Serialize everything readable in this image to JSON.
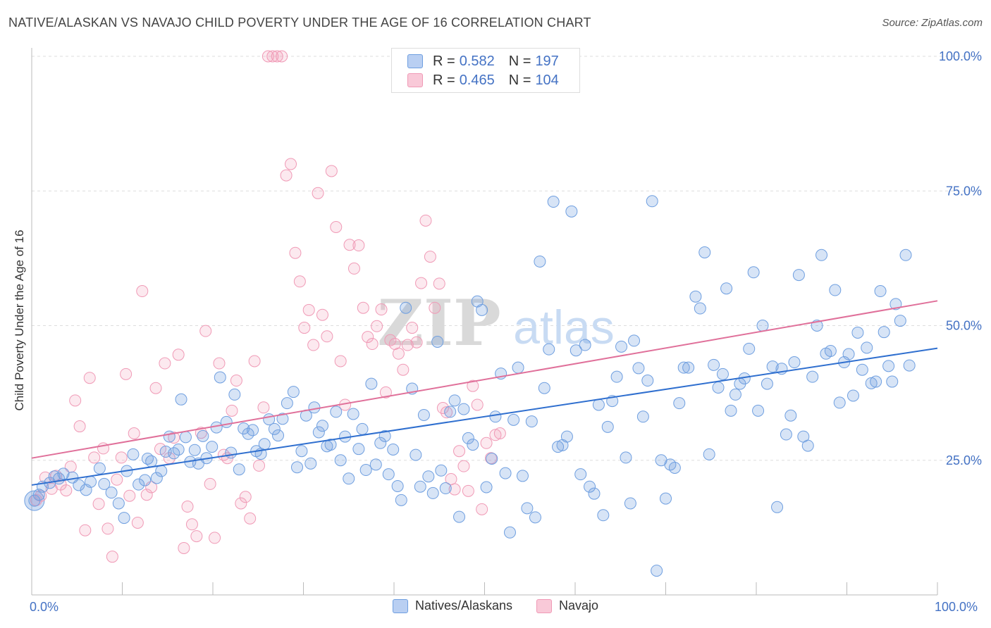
{
  "title": "NATIVE/ALASKAN VS NAVAJO CHILD POVERTY UNDER THE AGE OF 16 CORRELATION CHART",
  "source": "Source: ZipAtlas.com",
  "watermark": {
    "zip": "ZIP",
    "atlas": "atlas"
  },
  "legend": {
    "r_label": "R =",
    "n_label": "N =",
    "series": [
      {
        "r": "0.582",
        "n": "197"
      },
      {
        "r": "0.465",
        "n": "104"
      }
    ]
  },
  "bottom_legend": [
    "Natives/Alaskans",
    "Navajo"
  ],
  "chart_data": {
    "type": "scatter",
    "title": "NATIVE/ALASKAN VS NAVAJO CHILD POVERTY UNDER THE AGE OF 16 CORRELATION CHART",
    "xlabel": "",
    "ylabel": "Child Poverty Under the Age of 16",
    "xlim": [
      0,
      100
    ],
    "ylim": [
      0,
      100
    ],
    "x_tick_labels": [
      "0.0%",
      "100.0%"
    ],
    "y_tick_labels": [
      "25.0%",
      "50.0%",
      "75.0%",
      "100.0%"
    ],
    "y_ticks": [
      25,
      50,
      75,
      100
    ],
    "grid": true,
    "legend_placement": "top-center",
    "colors": {
      "natives": "#6f9fe0",
      "navajo": "#f09ab6",
      "natives_line": "#2f6fcf",
      "navajo_line": "#e0709a",
      "tick_text": "#4472c4"
    },
    "series": [
      {
        "name": "Natives/Alaskans",
        "trend": {
          "x": [
            0,
            100
          ],
          "y": [
            20.4,
            45.8
          ]
        },
        "points": [
          [
            0.3,
            17.5
          ],
          [
            0.8,
            18.6
          ],
          [
            1.2,
            20.1
          ],
          [
            2.0,
            20.8
          ],
          [
            2.5,
            22.0
          ],
          [
            3.0,
            21.6
          ],
          [
            3.5,
            22.5
          ],
          [
            4.5,
            21.8
          ],
          [
            5.2,
            20.4
          ],
          [
            6.0,
            19.5
          ],
          [
            6.5,
            21.0
          ],
          [
            7.5,
            23.5
          ],
          [
            8.0,
            20.6
          ],
          [
            8.8,
            19.0
          ],
          [
            9.6,
            17.0
          ],
          [
            10.2,
            14.3
          ],
          [
            10.5,
            23.0
          ],
          [
            11.2,
            26.1
          ],
          [
            11.8,
            20.5
          ],
          [
            12.5,
            21.3
          ],
          [
            12.8,
            25.3
          ],
          [
            13.2,
            24.8
          ],
          [
            13.8,
            21.7
          ],
          [
            14.3,
            23.0
          ],
          [
            14.8,
            26.6
          ],
          [
            15.2,
            29.4
          ],
          [
            15.7,
            26.3
          ],
          [
            16.2,
            27.0
          ],
          [
            16.5,
            36.3
          ],
          [
            17.0,
            29.3
          ],
          [
            17.5,
            24.7
          ],
          [
            18.0,
            26.9
          ],
          [
            18.4,
            24.4
          ],
          [
            18.9,
            29.5
          ],
          [
            19.3,
            25.4
          ],
          [
            19.9,
            27.5
          ],
          [
            20.4,
            31.1
          ],
          [
            20.8,
            40.4
          ],
          [
            21.5,
            32.1
          ],
          [
            22.0,
            26.4
          ],
          [
            22.4,
            37.2
          ],
          [
            22.9,
            23.3
          ],
          [
            23.4,
            30.9
          ],
          [
            23.9,
            29.9
          ],
          [
            24.4,
            30.6
          ],
          [
            24.8,
            26.7
          ],
          [
            25.3,
            26.2
          ],
          [
            25.7,
            28.0
          ],
          [
            26.2,
            32.6
          ],
          [
            26.8,
            30.8
          ],
          [
            27.2,
            29.6
          ],
          [
            27.7,
            32.7
          ],
          [
            28.2,
            35.6
          ],
          [
            28.9,
            37.7
          ],
          [
            29.3,
            23.7
          ],
          [
            29.8,
            26.7
          ],
          [
            30.3,
            33.3
          ],
          [
            30.8,
            24.4
          ],
          [
            31.2,
            34.8
          ],
          [
            31.7,
            30.2
          ],
          [
            32.1,
            31.4
          ],
          [
            32.6,
            27.6
          ],
          [
            33.0,
            27.9
          ],
          [
            33.6,
            34.0
          ],
          [
            34.1,
            25.0
          ],
          [
            34.6,
            29.4
          ],
          [
            35.0,
            21.6
          ],
          [
            35.5,
            33.6
          ],
          [
            36.1,
            27.1
          ],
          [
            36.5,
            30.8
          ],
          [
            36.9,
            23.2
          ],
          [
            37.5,
            39.2
          ],
          [
            38.0,
            24.2
          ],
          [
            38.5,
            28.2
          ],
          [
            39.0,
            29.5
          ],
          [
            39.4,
            22.4
          ],
          [
            39.9,
            27.0
          ],
          [
            40.4,
            20.2
          ],
          [
            40.8,
            17.6
          ],
          [
            41.3,
            53.3
          ],
          [
            42.0,
            38.3
          ],
          [
            42.4,
            26.0
          ],
          [
            42.9,
            20.1
          ],
          [
            43.3,
            33.4
          ],
          [
            43.8,
            22.0
          ],
          [
            44.3,
            18.9
          ],
          [
            44.8,
            47.0
          ],
          [
            45.2,
            23.1
          ],
          [
            45.7,
            19.8
          ],
          [
            46.2,
            34.0
          ],
          [
            46.7,
            36.1
          ],
          [
            47.2,
            14.5
          ],
          [
            47.7,
            34.5
          ],
          [
            48.2,
            29.1
          ],
          [
            48.7,
            27.9
          ],
          [
            49.2,
            54.5
          ],
          [
            49.7,
            52.9
          ],
          [
            50.2,
            20.0
          ],
          [
            50.8,
            25.3
          ],
          [
            51.2,
            33.1
          ],
          [
            51.8,
            41.1
          ],
          [
            52.3,
            22.6
          ],
          [
            52.8,
            11.6
          ],
          [
            53.2,
            32.5
          ],
          [
            53.7,
            42.2
          ],
          [
            54.2,
            22.1
          ],
          [
            54.7,
            16.1
          ],
          [
            55.2,
            32.2
          ],
          [
            55.6,
            14.4
          ],
          [
            56.1,
            61.9
          ],
          [
            56.6,
            38.4
          ],
          [
            57.1,
            45.6
          ],
          [
            57.6,
            73.0
          ],
          [
            58.1,
            27.5
          ],
          [
            58.6,
            27.8
          ],
          [
            59.1,
            29.4
          ],
          [
            59.6,
            71.2
          ],
          [
            60.1,
            45.4
          ],
          [
            60.6,
            22.4
          ],
          [
            61.1,
            46.4
          ],
          [
            61.6,
            20.1
          ],
          [
            62.1,
            18.8
          ],
          [
            62.6,
            35.3
          ],
          [
            63.1,
            14.8
          ],
          [
            63.6,
            31.2
          ],
          [
            64.1,
            36.0
          ],
          [
            64.6,
            40.5
          ],
          [
            65.1,
            46.1
          ],
          [
            65.6,
            25.5
          ],
          [
            66.1,
            17.0
          ],
          [
            66.5,
            47.2
          ],
          [
            67.0,
            42.1
          ],
          [
            67.5,
            33.1
          ],
          [
            68.0,
            39.8
          ],
          [
            68.5,
            73.1
          ],
          [
            69.0,
            4.5
          ],
          [
            69.5,
            25.0
          ],
          [
            70.0,
            17.9
          ],
          [
            70.5,
            24.2
          ],
          [
            71.0,
            23.6
          ],
          [
            71.5,
            35.6
          ],
          [
            72.0,
            42.2
          ],
          [
            72.5,
            42.2
          ],
          [
            73.3,
            55.4
          ],
          [
            73.8,
            53.2
          ],
          [
            74.3,
            63.6
          ],
          [
            74.8,
            26.1
          ],
          [
            75.3,
            42.7
          ],
          [
            75.8,
            38.5
          ],
          [
            76.3,
            41.0
          ],
          [
            76.7,
            56.9
          ],
          [
            77.2,
            34.2
          ],
          [
            77.7,
            37.2
          ],
          [
            78.2,
            39.2
          ],
          [
            78.7,
            40.2
          ],
          [
            79.2,
            45.7
          ],
          [
            79.7,
            59.9
          ],
          [
            80.2,
            34.2
          ],
          [
            80.7,
            50.0
          ],
          [
            81.2,
            39.2
          ],
          [
            81.8,
            42.4
          ],
          [
            82.3,
            16.3
          ],
          [
            82.8,
            42.0
          ],
          [
            83.3,
            29.8
          ],
          [
            83.8,
            33.3
          ],
          [
            84.2,
            43.2
          ],
          [
            84.7,
            59.4
          ],
          [
            85.2,
            29.4
          ],
          [
            85.7,
            27.7
          ],
          [
            86.2,
            40.5
          ],
          [
            86.7,
            50.0
          ],
          [
            87.2,
            63.1
          ],
          [
            87.7,
            44.8
          ],
          [
            88.2,
            45.3
          ],
          [
            88.7,
            56.6
          ],
          [
            89.2,
            35.7
          ],
          [
            89.7,
            43.2
          ],
          [
            90.2,
            44.7
          ],
          [
            90.7,
            37.0
          ],
          [
            91.2,
            48.7
          ],
          [
            91.7,
            41.8
          ],
          [
            92.2,
            45.9
          ],
          [
            92.7,
            39.3
          ],
          [
            93.2,
            39.6
          ],
          [
            93.7,
            56.4
          ],
          [
            94.1,
            48.8
          ],
          [
            94.6,
            42.5
          ],
          [
            95.0,
            39.6
          ],
          [
            95.4,
            54.0
          ],
          [
            95.9,
            50.9
          ],
          [
            96.5,
            63.1
          ],
          [
            96.9,
            42.6
          ]
        ]
      },
      {
        "name": "Navajo",
        "trend": {
          "x": [
            0,
            100
          ],
          "y": [
            25.4,
            54.6
          ]
        },
        "points": [
          [
            0.5,
            17.6
          ],
          [
            1.0,
            18.4
          ],
          [
            1.5,
            21.8
          ],
          [
            2.2,
            19.7
          ],
          [
            2.7,
            22.1
          ],
          [
            3.2,
            20.5
          ],
          [
            3.8,
            19.4
          ],
          [
            4.3,
            23.8
          ],
          [
            4.8,
            36.1
          ],
          [
            5.3,
            31.3
          ],
          [
            5.9,
            12.0
          ],
          [
            6.4,
            40.3
          ],
          [
            6.9,
            25.5
          ],
          [
            7.4,
            16.9
          ],
          [
            7.9,
            27.2
          ],
          [
            8.4,
            12.3
          ],
          [
            8.9,
            7.1
          ],
          [
            9.4,
            21.4
          ],
          [
            9.9,
            25.5
          ],
          [
            10.4,
            41.0
          ],
          [
            10.8,
            18.4
          ],
          [
            11.3,
            30.0
          ],
          [
            11.7,
            13.4
          ],
          [
            12.2,
            56.4
          ],
          [
            12.7,
            18.6
          ],
          [
            13.2,
            20.0
          ],
          [
            13.7,
            38.4
          ],
          [
            14.2,
            27.1
          ],
          [
            14.7,
            43.0
          ],
          [
            15.2,
            25.4
          ],
          [
            15.7,
            29.2
          ],
          [
            16.2,
            44.6
          ],
          [
            16.8,
            8.7
          ],
          [
            17.2,
            16.4
          ],
          [
            17.7,
            13.1
          ],
          [
            18.2,
            10.9
          ],
          [
            18.7,
            30.1
          ],
          [
            19.2,
            49.0
          ],
          [
            19.7,
            20.6
          ],
          [
            20.2,
            10.6
          ],
          [
            20.7,
            43.0
          ],
          [
            21.2,
            26.0
          ],
          [
            21.6,
            25.4
          ],
          [
            22.1,
            34.2
          ],
          [
            22.6,
            39.8
          ],
          [
            23.1,
            17.0
          ],
          [
            23.6,
            18.2
          ],
          [
            24.1,
            14.2
          ],
          [
            24.6,
            43.4
          ],
          [
            25.1,
            24.0
          ],
          [
            25.6,
            34.8
          ],
          [
            26.1,
            100.0
          ],
          [
            26.6,
            100.0
          ],
          [
            27.1,
            100.0
          ],
          [
            27.6,
            100.0
          ],
          [
            28.1,
            77.9
          ],
          [
            28.6,
            80.0
          ],
          [
            29.1,
            63.5
          ],
          [
            29.6,
            58.2
          ],
          [
            30.1,
            49.6
          ],
          [
            30.6,
            52.9
          ],
          [
            31.1,
            46.4
          ],
          [
            31.6,
            74.6
          ],
          [
            32.1,
            52.0
          ],
          [
            32.6,
            48.0
          ],
          [
            33.1,
            78.7
          ],
          [
            33.6,
            68.3
          ],
          [
            34.1,
            43.4
          ],
          [
            34.6,
            35.3
          ],
          [
            35.1,
            65.0
          ],
          [
            35.6,
            60.6
          ],
          [
            36.1,
            64.9
          ],
          [
            36.6,
            53.3
          ],
          [
            37.1,
            47.9
          ],
          [
            37.6,
            46.6
          ],
          [
            38.1,
            49.9
          ],
          [
            38.6,
            53.0
          ],
          [
            39.1,
            37.6
          ],
          [
            39.6,
            47.3
          ],
          [
            40.1,
            46.6
          ],
          [
            40.5,
            44.8
          ],
          [
            41.0,
            41.8
          ],
          [
            41.5,
            46.4
          ],
          [
            42.0,
            49.6
          ],
          [
            42.5,
            46.9
          ],
          [
            43.0,
            57.9
          ],
          [
            43.5,
            69.5
          ],
          [
            44.0,
            62.8
          ],
          [
            44.5,
            53.3
          ],
          [
            45.0,
            57.8
          ],
          [
            45.4,
            34.7
          ],
          [
            45.8,
            33.9
          ],
          [
            46.3,
            21.5
          ],
          [
            46.7,
            19.6
          ],
          [
            47.2,
            26.7
          ],
          [
            47.7,
            23.9
          ],
          [
            48.2,
            19.3
          ],
          [
            48.7,
            38.8
          ],
          [
            49.2,
            35.3
          ],
          [
            49.7,
            15.9
          ],
          [
            50.2,
            28.2
          ],
          [
            50.7,
            25.4
          ],
          [
            51.2,
            29.7
          ],
          [
            51.7,
            30.0
          ]
        ]
      }
    ]
  }
}
